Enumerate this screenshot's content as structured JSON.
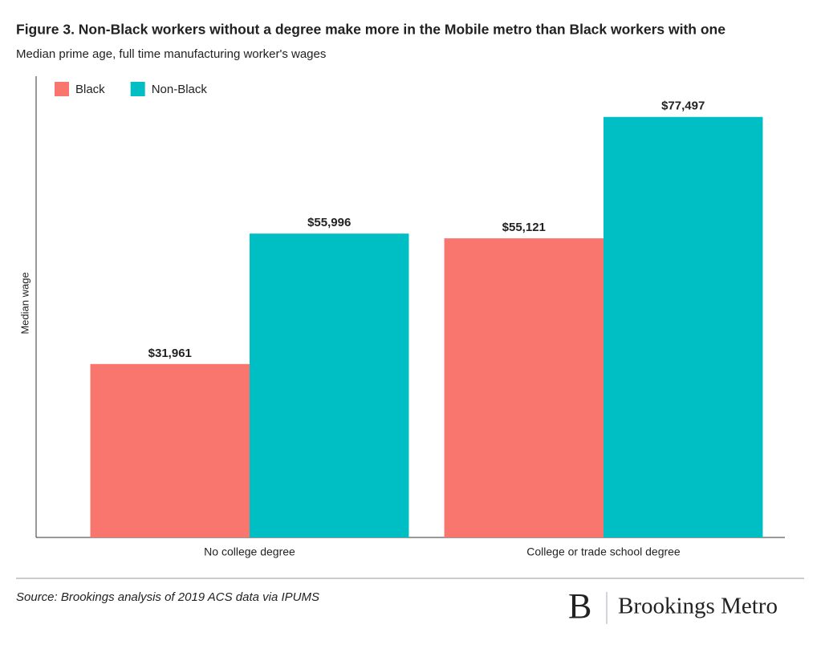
{
  "chart_data": {
    "type": "bar",
    "title": "Figure 3. Non-Black workers without a degree make more in the Mobile metro than Black workers with one",
    "subtitle": "Median prime age, full time manufacturing worker's wages",
    "y_label": "Median wage",
    "categories": [
      "No college degree",
      "College or trade school degree"
    ],
    "series": [
      {
        "name": "Black",
        "color": "#f8766d",
        "values": [
          31961,
          55121
        ],
        "value_labels": [
          "$31,961",
          "$55,121"
        ]
      },
      {
        "name": "Non-Black",
        "color": "#00bfc4",
        "values": [
          55996,
          77497
        ],
        "value_labels": [
          "$55,996",
          "$77,497"
        ]
      }
    ],
    "ylim": [
      0,
      85000
    ],
    "legend": "top-left",
    "source": "Source: Brookings analysis of 2019 ACS data via IPUMS",
    "logo_mark": "B",
    "logo_text": "Brookings Metro"
  }
}
